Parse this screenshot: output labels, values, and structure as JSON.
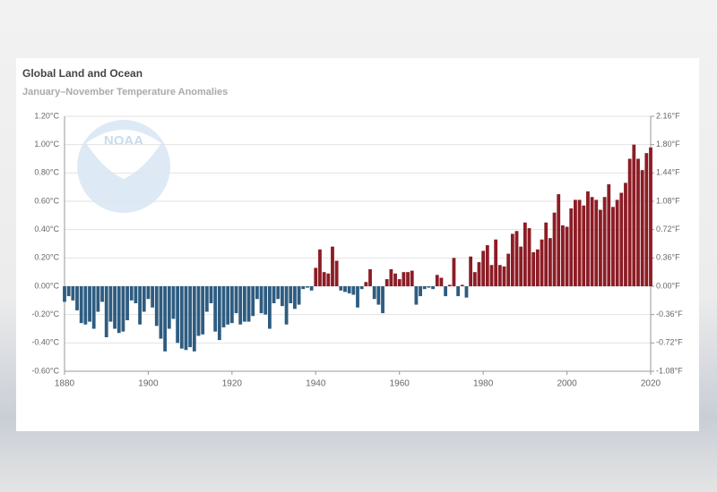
{
  "chart_data": {
    "type": "bar",
    "title": "Global Land and Ocean",
    "subtitle": "January–November Temperature Anomalies",
    "logo_text": "NOAA",
    "x": [
      1880,
      1881,
      1882,
      1883,
      1884,
      1885,
      1886,
      1887,
      1888,
      1889,
      1890,
      1891,
      1892,
      1893,
      1894,
      1895,
      1896,
      1897,
      1898,
      1899,
      1900,
      1901,
      1902,
      1903,
      1904,
      1905,
      1906,
      1907,
      1908,
      1909,
      1910,
      1911,
      1912,
      1913,
      1914,
      1915,
      1916,
      1917,
      1918,
      1919,
      1920,
      1921,
      1922,
      1923,
      1924,
      1925,
      1926,
      1927,
      1928,
      1929,
      1930,
      1931,
      1932,
      1933,
      1934,
      1935,
      1936,
      1937,
      1938,
      1939,
      1940,
      1941,
      1942,
      1943,
      1944,
      1945,
      1946,
      1947,
      1948,
      1949,
      1950,
      1951,
      1952,
      1953,
      1954,
      1955,
      1956,
      1957,
      1958,
      1959,
      1960,
      1961,
      1962,
      1963,
      1964,
      1965,
      1966,
      1967,
      1968,
      1969,
      1970,
      1971,
      1972,
      1973,
      1974,
      1975,
      1976,
      1977,
      1978,
      1979,
      1980,
      1981,
      1982,
      1983,
      1984,
      1985,
      1986,
      1987,
      1988,
      1989,
      1990,
      1991,
      1992,
      1993,
      1994,
      1995,
      1996,
      1997,
      1998,
      1999,
      2000,
      2001,
      2002,
      2003,
      2004,
      2005,
      2006,
      2007,
      2008,
      2009,
      2010,
      2011,
      2012,
      2013,
      2014,
      2015,
      2016,
      2017,
      2018,
      2019,
      2020
    ],
    "values": [
      -0.11,
      -0.07,
      -0.1,
      -0.17,
      -0.26,
      -0.27,
      -0.25,
      -0.3,
      -0.18,
      -0.11,
      -0.36,
      -0.25,
      -0.3,
      -0.33,
      -0.32,
      -0.24,
      -0.1,
      -0.12,
      -0.27,
      -0.18,
      -0.09,
      -0.15,
      -0.28,
      -0.37,
      -0.46,
      -0.3,
      -0.23,
      -0.4,
      -0.44,
      -0.45,
      -0.43,
      -0.46,
      -0.35,
      -0.34,
      -0.18,
      -0.12,
      -0.32,
      -0.38,
      -0.29,
      -0.27,
      -0.26,
      -0.19,
      -0.27,
      -0.25,
      -0.25,
      -0.21,
      -0.09,
      -0.19,
      -0.2,
      -0.3,
      -0.12,
      -0.09,
      -0.14,
      -0.27,
      -0.12,
      -0.16,
      -0.13,
      -0.02,
      -0.01,
      -0.03,
      0.13,
      0.26,
      0.1,
      0.09,
      0.28,
      0.18,
      -0.03,
      -0.04,
      -0.05,
      -0.06,
      -0.15,
      -0.02,
      0.03,
      0.12,
      -0.09,
      -0.13,
      -0.19,
      0.05,
      0.12,
      0.09,
      0.05,
      0.1,
      0.1,
      0.11,
      -0.13,
      -0.07,
      -0.02,
      -0.01,
      -0.02,
      0.08,
      0.06,
      -0.07,
      0.01,
      0.2,
      -0.07,
      0.01,
      -0.08,
      0.21,
      0.1,
      0.17,
      0.25,
      0.29,
      0.15,
      0.33,
      0.15,
      0.14,
      0.23,
      0.37,
      0.39,
      0.28,
      0.45,
      0.41,
      0.24,
      0.26,
      0.33,
      0.45,
      0.34,
      0.52,
      0.65,
      0.43,
      0.42,
      0.55,
      0.61,
      0.61,
      0.57,
      0.67,
      0.63,
      0.61,
      0.54,
      0.63,
      0.72,
      0.56,
      0.61,
      0.66,
      0.73,
      0.9,
      1.0,
      0.9,
      0.82,
      0.94,
      0.98
    ],
    "positive_color": "#8c1c25",
    "negative_color": "#2e5c80",
    "xlim": [
      1880,
      2020
    ],
    "xticks": [
      1880,
      1900,
      1920,
      1940,
      1960,
      1980,
      2000,
      2020
    ],
    "ylim": [
      -0.6,
      1.2
    ],
    "yticks": [
      {
        "value": -0.6,
        "label": "-0.60°C"
      },
      {
        "value": -0.4,
        "label": "-0.40°C"
      },
      {
        "value": -0.2,
        "label": "-0.20°C"
      },
      {
        "value": 0,
        "label": "0.00°C"
      },
      {
        "value": 0.2,
        "label": "0.20°C"
      },
      {
        "value": 0.4,
        "label": "0.40°C"
      },
      {
        "value": 0.6,
        "label": "0.60°C"
      },
      {
        "value": 0.8,
        "label": "0.80°C"
      },
      {
        "value": 1.0,
        "label": "1.00°C"
      },
      {
        "value": 1.2,
        "label": "1.20°C"
      }
    ],
    "y2lim": [
      -1.08,
      2.16
    ],
    "y2ticks": [
      {
        "value": -1.08,
        "label": "-1.08°F"
      },
      {
        "value": -0.72,
        "label": "-0.72°F"
      },
      {
        "value": -0.36,
        "label": "-0.36°F"
      },
      {
        "value": 0,
        "label": "0.00°F"
      },
      {
        "value": 0.36,
        "label": "0.36°F"
      },
      {
        "value": 0.72,
        "label": "0.72°F"
      },
      {
        "value": 1.08,
        "label": "1.08°F"
      },
      {
        "value": 1.44,
        "label": "1.44°F"
      },
      {
        "value": 1.8,
        "label": "1.80°F"
      },
      {
        "value": 2.16,
        "label": "2.16°F"
      }
    ],
    "grid": true
  }
}
